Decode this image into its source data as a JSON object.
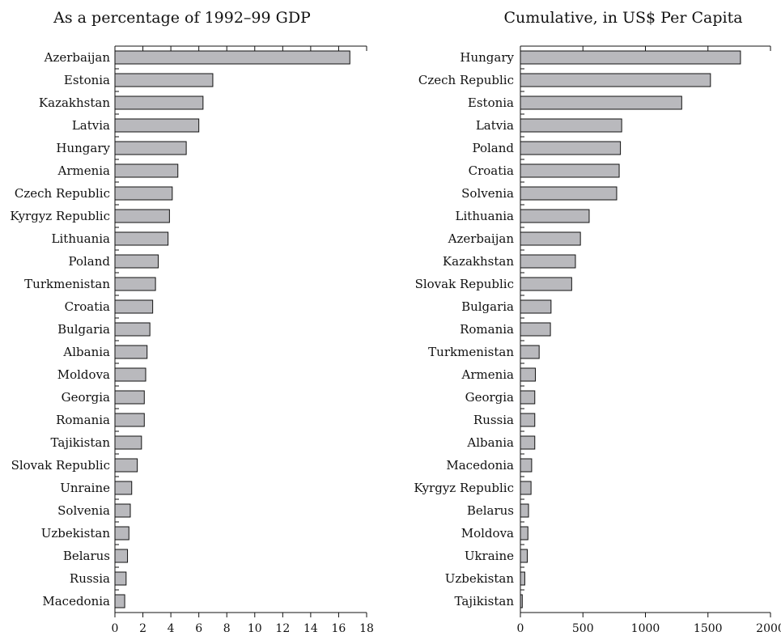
{
  "chart_data": [
    {
      "type": "bar",
      "orientation": "horizontal",
      "title": "As a percentage of 1992–99 GDP",
      "categories": [
        "Azerbaijan",
        "Estonia",
        "Kazakhstan",
        "Latvia",
        "Hungary",
        "Armenia",
        "Czech Republic",
        "Kyrgyz Republic",
        "Lithuania",
        "Poland",
        "Turkmenistan",
        "Croatia",
        "Bulgaria",
        "Albania",
        "Moldova",
        "Georgia",
        "Romania",
        "Tajikistan",
        "Slovak Republic",
        "Unraine",
        "Solvenia",
        "Uzbekistan",
        "Belarus",
        "Russia",
        "Macedonia"
      ],
      "values": [
        16.8,
        7.0,
        6.3,
        6.0,
        5.1,
        4.5,
        4.1,
        3.9,
        3.8,
        3.1,
        2.9,
        2.7,
        2.5,
        2.3,
        2.2,
        2.1,
        2.1,
        1.9,
        1.6,
        1.2,
        1.1,
        1.0,
        0.9,
        0.8,
        0.7
      ],
      "xlim": [
        0,
        18
      ],
      "xticks": [
        0,
        2,
        4,
        6,
        8,
        10,
        12,
        14,
        16,
        18
      ],
      "xlabel": "",
      "ylabel": ""
    },
    {
      "type": "bar",
      "orientation": "horizontal",
      "title": "Cumulative, in US$ Per Capita",
      "categories": [
        "Hungary",
        "Czech Republic",
        "Estonia",
        "Latvia",
        "Poland",
        "Croatia",
        "Solvenia",
        "Lithuania",
        "Azerbaijan",
        "Kazakhstan",
        "Slovak Republic",
        "Bulgaria",
        "Romania",
        "Turkmenistan",
        "Armenia",
        "Georgia",
        "Russia",
        "Albania",
        "Macedonia",
        "Kyrgyz Republic",
        "Belarus",
        "Moldova",
        "Ukraine",
        "Uzbekistan",
        "Tajikistan"
      ],
      "values": [
        1760,
        1520,
        1290,
        810,
        800,
        790,
        770,
        550,
        480,
        440,
        410,
        245,
        240,
        150,
        120,
        115,
        115,
        115,
        90,
        85,
        65,
        60,
        55,
        35,
        15
      ],
      "xlim": [
        0,
        2000
      ],
      "xticks": [
        0,
        500,
        1000,
        1500,
        2000
      ],
      "xlabel": "",
      "ylabel": ""
    }
  ]
}
